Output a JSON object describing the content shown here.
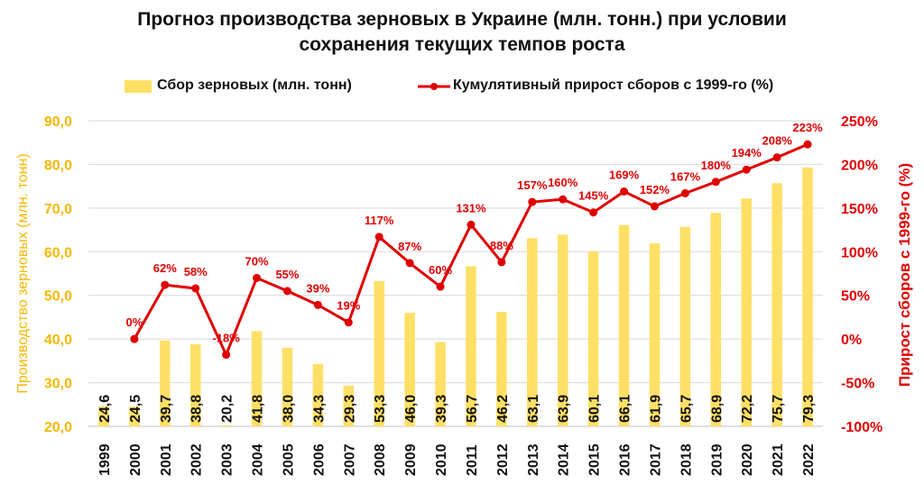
{
  "colors": {
    "bar": "#FFE066",
    "bar_edge": "#F5C400",
    "line": "#E00000",
    "left_axis": "#F5B800",
    "right_axis": "#E00000",
    "grid": "#D9D9D9",
    "text": "#111111"
  },
  "chart_data": {
    "type": "bar+line",
    "title_line1": "Прогноз производства зерновых в Украине (млн. тонн.) при условии",
    "title_line2": "сохранения текущих темпов роста",
    "legend_bar": "Сбор зерновых (млн. тонн)",
    "legend_line": "Кумулятивный прирост сборов с 1999-го (%)",
    "legend_position": "top",
    "ylabel_left": "Производство зерновых (млн. тонн)",
    "ylabel_right": "Прирост сборов с 1999-го (%)",
    "grid": true,
    "categories": [
      "1999",
      "2000",
      "2001",
      "2002",
      "2003",
      "2004",
      "2005",
      "2006",
      "2007",
      "2008",
      "2009",
      "2010",
      "2011",
      "2012",
      "2013",
      "2014",
      "2015",
      "2016",
      "2017",
      "2018",
      "2019",
      "2020",
      "2021",
      "2022"
    ],
    "series": [
      {
        "name": "Сбор зерновых (млн. тонн)",
        "axis": "left",
        "values": [
          24.6,
          24.5,
          39.7,
          38.8,
          20.2,
          41.8,
          38.0,
          34.3,
          29.3,
          53.3,
          46.0,
          39.3,
          56.7,
          46.2,
          63.1,
          63.9,
          60.1,
          66.1,
          61.9,
          65.7,
          68.9,
          72.2,
          75.7,
          79.3
        ],
        "labels": [
          "24,6",
          "24,5",
          "39,7",
          "38,8",
          "20,2",
          "41,8",
          "38,0",
          "34,3",
          "29,3",
          "53,3",
          "46,0",
          "39,3",
          "56,7",
          "46,2",
          "63,1",
          "63,9",
          "60,1",
          "66,1",
          "61,9",
          "65,7",
          "68,9",
          "72,2",
          "75,7",
          "79,3"
        ]
      },
      {
        "name": "Кумулятивный прирост сборов с 1999-го (%)",
        "axis": "right",
        "values": [
          null,
          0,
          62,
          58,
          -18,
          70,
          55,
          39,
          19,
          117,
          87,
          60,
          131,
          88,
          157,
          160,
          145,
          169,
          152,
          167,
          180,
          194,
          208,
          223
        ],
        "labels": [
          null,
          "0%",
          "62%",
          "58%",
          "-18%",
          "70%",
          "55%",
          "39%",
          "19%",
          "117%",
          "87%",
          "60%",
          "131%",
          "88%",
          "157%",
          "160%",
          "145%",
          "169%",
          "152%",
          "167%",
          "180%",
          "194%",
          "208%",
          "223%"
        ]
      }
    ],
    "ylim_left": [
      20,
      90
    ],
    "yticks_left": [
      20,
      30,
      40,
      50,
      60,
      70,
      80,
      90
    ],
    "ytick_labels_left": [
      "20,0",
      "30,0",
      "40,0",
      "50,0",
      "60,0",
      "70,0",
      "80,0",
      "90,0"
    ],
    "ylim_right": [
      -100,
      250
    ],
    "yticks_right": [
      -100,
      -50,
      0,
      50,
      100,
      150,
      200,
      250
    ],
    "ytick_labels_right": [
      "-100%",
      "-50%",
      "0%",
      "50%",
      "100%",
      "150%",
      "200%",
      "250%"
    ]
  }
}
